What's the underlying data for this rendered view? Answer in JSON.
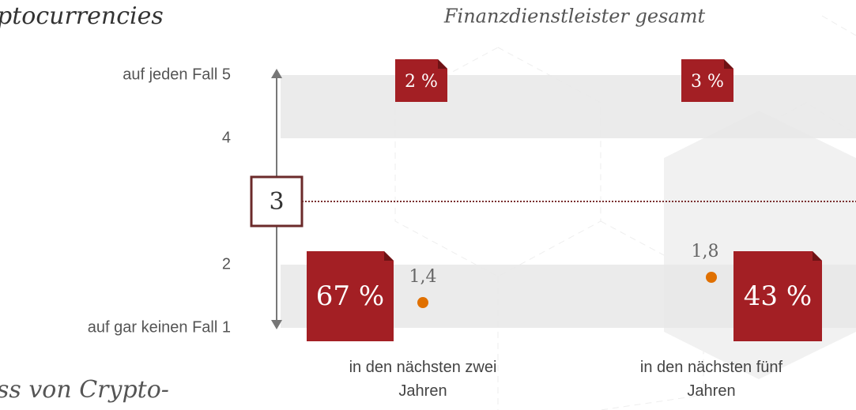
{
  "chart_data": {
    "type": "line",
    "title": "ptocurrencies",
    "subtitle": "Finanzdienstleister gesamt",
    "footer": "ss von Crypto-",
    "categories": [
      "in den nächsten zwei Jahren",
      "in den nächsten fünf Jahren"
    ],
    "series": [
      {
        "color": "#e07000",
        "values": [
          1.4,
          1.8
        ],
        "value_labels": [
          "1,4",
          "1,8"
        ]
      }
    ],
    "ylim": [
      1,
      5
    ],
    "yticks": [
      {
        "value": 5,
        "label": "auf jeden Fall 5"
      },
      4,
      2,
      {
        "value": 1,
        "label": "auf  gar keinen Fall 1"
      }
    ],
    "reference": 3,
    "top_share": {
      "values": [
        2,
        3
      ],
      "value_labels": [
        "2 %",
        "3 %"
      ]
    },
    "bottom_share": {
      "values": [
        67,
        43
      ],
      "value_labels": [
        "67 %",
        "43 %"
      ]
    },
    "box_color": "#a31f24"
  }
}
